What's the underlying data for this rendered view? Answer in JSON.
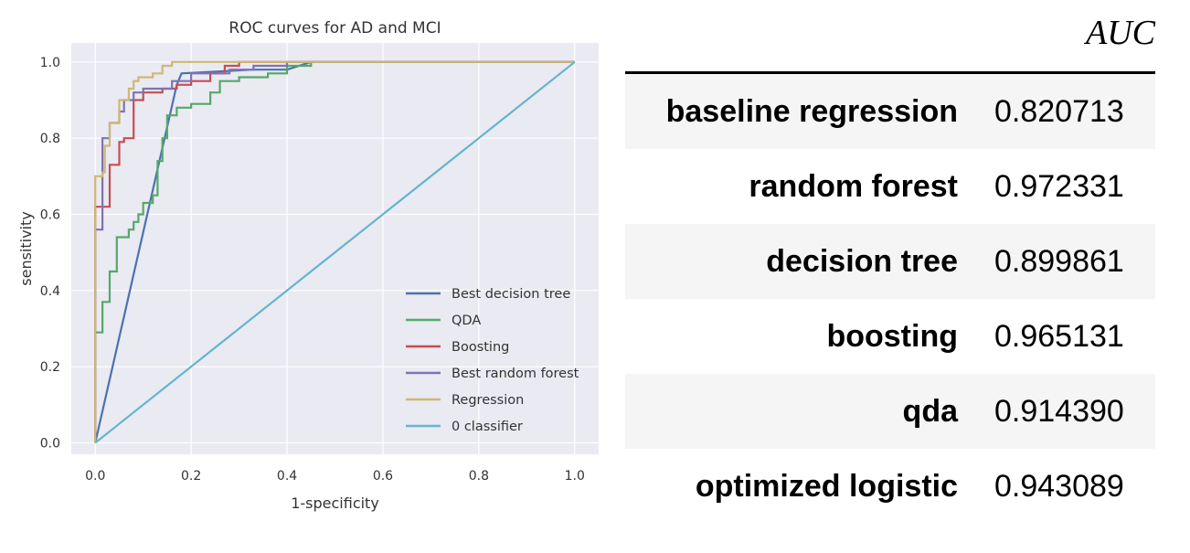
{
  "chart_data": {
    "type": "line",
    "title": "ROC curves for AD and MCI",
    "xlabel": "1-specificity",
    "ylabel": "sensitivity",
    "xlim": [
      -0.05,
      1.05
    ],
    "ylim": [
      -0.03,
      1.05
    ],
    "xticks": [
      "0.0",
      "0.2",
      "0.4",
      "0.6",
      "0.8",
      "1.0"
    ],
    "yticks": [
      "0.0",
      "0.2",
      "0.4",
      "0.6",
      "0.8",
      "1.0"
    ],
    "grid": true,
    "legend_position": "lower-right",
    "series": [
      {
        "name": "Best decision tree",
        "color": "#4c72b0",
        "points": [
          [
            0,
            0
          ],
          [
            0.17,
            0.94
          ],
          [
            0.18,
            0.97
          ],
          [
            0.33,
            0.98
          ],
          [
            0.4,
            0.98
          ],
          [
            0.45,
            1.0
          ],
          [
            1,
            1
          ]
        ]
      },
      {
        "name": "QDA",
        "color": "#55a868",
        "points": [
          [
            0,
            0
          ],
          [
            0,
            0.29
          ],
          [
            0.015,
            0.29
          ],
          [
            0.015,
            0.37
          ],
          [
            0.03,
            0.37
          ],
          [
            0.03,
            0.45
          ],
          [
            0.045,
            0.45
          ],
          [
            0.045,
            0.54
          ],
          [
            0.07,
            0.54
          ],
          [
            0.07,
            0.56
          ],
          [
            0.08,
            0.56
          ],
          [
            0.08,
            0.58
          ],
          [
            0.09,
            0.58
          ],
          [
            0.09,
            0.6
          ],
          [
            0.1,
            0.6
          ],
          [
            0.1,
            0.63
          ],
          [
            0.12,
            0.63
          ],
          [
            0.12,
            0.65
          ],
          [
            0.13,
            0.65
          ],
          [
            0.13,
            0.74
          ],
          [
            0.14,
            0.74
          ],
          [
            0.14,
            0.8
          ],
          [
            0.15,
            0.8
          ],
          [
            0.15,
            0.86
          ],
          [
            0.17,
            0.86
          ],
          [
            0.17,
            0.88
          ],
          [
            0.2,
            0.88
          ],
          [
            0.2,
            0.89
          ],
          [
            0.24,
            0.89
          ],
          [
            0.24,
            0.92
          ],
          [
            0.26,
            0.92
          ],
          [
            0.26,
            0.95
          ],
          [
            0.3,
            0.95
          ],
          [
            0.3,
            0.96
          ],
          [
            0.36,
            0.96
          ],
          [
            0.36,
            0.97
          ],
          [
            0.4,
            0.97
          ],
          [
            0.4,
            0.99
          ],
          [
            0.45,
            0.99
          ],
          [
            0.45,
            1.0
          ],
          [
            1,
            1
          ]
        ]
      },
      {
        "name": "Boosting",
        "color": "#c44e52",
        "points": [
          [
            0,
            0
          ],
          [
            0,
            0.62
          ],
          [
            0.03,
            0.62
          ],
          [
            0.03,
            0.73
          ],
          [
            0.05,
            0.73
          ],
          [
            0.05,
            0.79
          ],
          [
            0.06,
            0.79
          ],
          [
            0.06,
            0.8
          ],
          [
            0.08,
            0.8
          ],
          [
            0.08,
            0.9
          ],
          [
            0.1,
            0.9
          ],
          [
            0.1,
            0.92
          ],
          [
            0.14,
            0.92
          ],
          [
            0.14,
            0.93
          ],
          [
            0.17,
            0.93
          ],
          [
            0.17,
            0.94
          ],
          [
            0.2,
            0.94
          ],
          [
            0.2,
            0.95
          ],
          [
            0.24,
            0.95
          ],
          [
            0.24,
            0.97
          ],
          [
            0.27,
            0.97
          ],
          [
            0.27,
            0.99
          ],
          [
            0.3,
            0.99
          ],
          [
            0.3,
            1.0
          ],
          [
            1,
            1
          ]
        ]
      },
      {
        "name": "Best random forest",
        "color": "#8172b2",
        "points": [
          [
            0,
            0
          ],
          [
            0,
            0.56
          ],
          [
            0.015,
            0.56
          ],
          [
            0.015,
            0.8
          ],
          [
            0.03,
            0.8
          ],
          [
            0.03,
            0.84
          ],
          [
            0.05,
            0.84
          ],
          [
            0.05,
            0.87
          ],
          [
            0.06,
            0.87
          ],
          [
            0.06,
            0.9
          ],
          [
            0.08,
            0.9
          ],
          [
            0.08,
            0.92
          ],
          [
            0.1,
            0.92
          ],
          [
            0.1,
            0.93
          ],
          [
            0.16,
            0.93
          ],
          [
            0.16,
            0.95
          ],
          [
            0.2,
            0.95
          ],
          [
            0.2,
            0.97
          ],
          [
            0.28,
            0.97
          ],
          [
            0.28,
            0.98
          ],
          [
            0.33,
            0.98
          ],
          [
            0.33,
            0.99
          ],
          [
            0.4,
            0.99
          ],
          [
            0.4,
            1.0
          ],
          [
            1,
            1
          ]
        ]
      },
      {
        "name": "Regression",
        "color": "#ccb974",
        "points": [
          [
            0,
            0
          ],
          [
            0,
            0.7
          ],
          [
            0.015,
            0.7
          ],
          [
            0.015,
            0.71
          ],
          [
            0.02,
            0.71
          ],
          [
            0.02,
            0.78
          ],
          [
            0.03,
            0.78
          ],
          [
            0.03,
            0.84
          ],
          [
            0.05,
            0.84
          ],
          [
            0.05,
            0.9
          ],
          [
            0.07,
            0.9
          ],
          [
            0.07,
            0.93
          ],
          [
            0.08,
            0.93
          ],
          [
            0.08,
            0.95
          ],
          [
            0.09,
            0.95
          ],
          [
            0.09,
            0.96
          ],
          [
            0.12,
            0.96
          ],
          [
            0.12,
            0.97
          ],
          [
            0.14,
            0.97
          ],
          [
            0.14,
            0.99
          ],
          [
            0.16,
            0.99
          ],
          [
            0.16,
            1.0
          ],
          [
            1,
            1
          ]
        ]
      },
      {
        "name": "0 classifier",
        "color": "#64b5cd",
        "points": [
          [
            0,
            0
          ],
          [
            1,
            1
          ]
        ]
      }
    ]
  },
  "auc_table": {
    "header": "AUC",
    "rows": [
      {
        "label": "baseline regression",
        "value": "0.820713"
      },
      {
        "label": "random forest",
        "value": "0.972331"
      },
      {
        "label": "decision tree",
        "value": "0.899861"
      },
      {
        "label": "boosting",
        "value": "0.965131"
      },
      {
        "label": "qda",
        "value": "0.914390"
      },
      {
        "label": "optimized logistic",
        "value": "0.943089"
      }
    ]
  }
}
